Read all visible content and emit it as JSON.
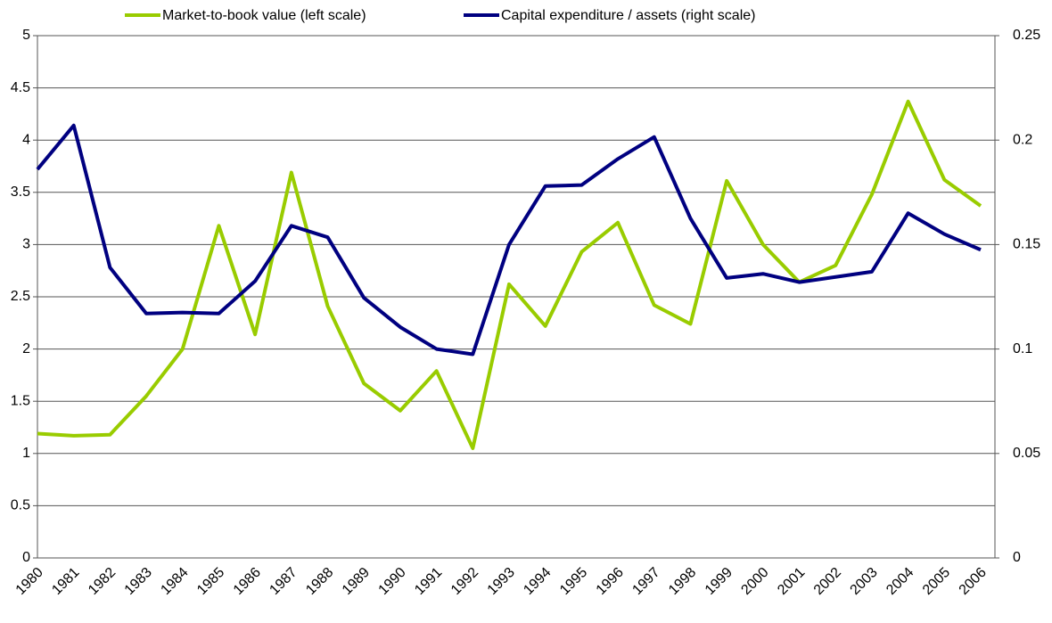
{
  "chart_data": {
    "type": "line",
    "categories": [
      "1980",
      "1981",
      "1982",
      "1983",
      "1984",
      "1985",
      "1986",
      "1987",
      "1988",
      "1989",
      "1990",
      "1991",
      "1992",
      "1993",
      "1994",
      "1995",
      "1996",
      "1997",
      "1998",
      "1999",
      "2000",
      "2001",
      "2002",
      "2003",
      "2004",
      "2005",
      "2006"
    ],
    "series": [
      {
        "name": "Market-to-book value (left scale)",
        "color": "#99cc00",
        "axis": "y",
        "values": [
          1.19,
          1.17,
          1.18,
          1.55,
          2.0,
          3.18,
          2.14,
          3.69,
          2.41,
          1.67,
          1.41,
          1.79,
          1.05,
          2.62,
          2.22,
          2.93,
          3.21,
          2.42,
          2.24,
          3.61,
          3.0,
          2.64,
          2.8,
          3.48,
          4.37,
          3.62,
          3.37
        ]
      },
      {
        "name": "Capital expenditure / assets (right scale)",
        "color": "#000080",
        "axis": "y2",
        "values": [
          0.186,
          0.207,
          0.139,
          0.117,
          0.1175,
          0.117,
          0.1325,
          0.159,
          0.1535,
          0.1245,
          0.1105,
          0.1,
          0.0975,
          0.15,
          0.178,
          0.1785,
          0.191,
          0.2015,
          0.1625,
          0.134,
          0.136,
          0.132,
          0.1345,
          0.137,
          0.165,
          0.155,
          0.1475
        ]
      }
    ],
    "ylim": [
      0,
      5
    ],
    "yticks": [
      0,
      0.5,
      1,
      1.5,
      2,
      2.5,
      3,
      3.5,
      4,
      4.5,
      5
    ],
    "y2lim": [
      0,
      0.25
    ],
    "y2ticks": [
      0,
      0.05,
      0.1,
      0.15,
      0.2,
      0.25
    ],
    "grid": true,
    "legend": "top"
  }
}
